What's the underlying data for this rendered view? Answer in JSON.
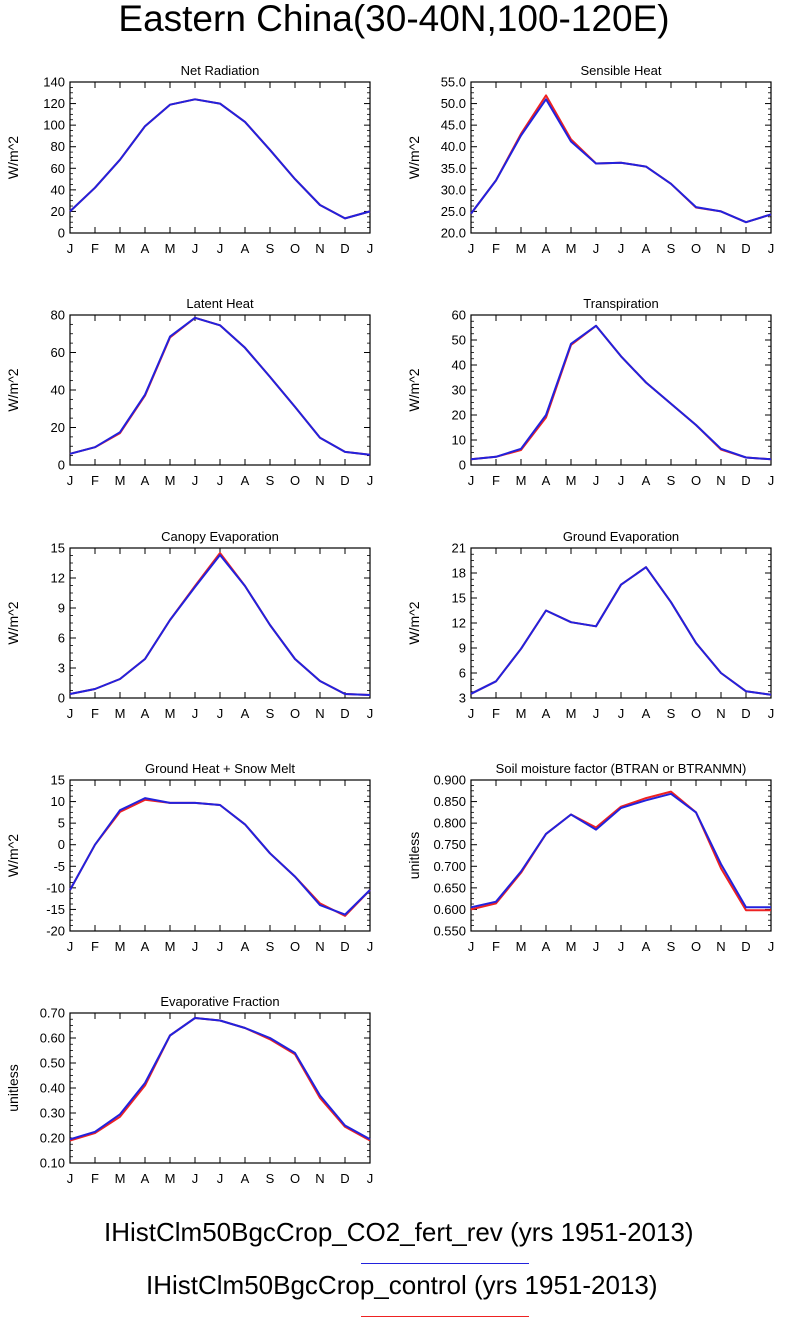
{
  "title": "Eastern China(30-40N,100-120E)",
  "months": [
    "J",
    "F",
    "M",
    "A",
    "M",
    "J",
    "J",
    "A",
    "S",
    "O",
    "N",
    "D",
    "J"
  ],
  "colors": {
    "fert_rev": "#2222dd",
    "control": "#ee2222"
  },
  "legend": [
    {
      "label": "IHistClm50BgcCrop_CO2_fert_rev (yrs 1951-2013)",
      "color": "#2222dd"
    },
    {
      "label": "IHistClm50BgcCrop_control (yrs 1951-2013)",
      "color": "#ee2222"
    }
  ],
  "chart_data": [
    {
      "type": "line",
      "title": "Net Radiation",
      "ylabel": "W/m^2",
      "ylim": [
        0,
        140
      ],
      "yticks": [
        "0",
        "20",
        "40",
        "60",
        "80",
        "100",
        "120",
        "140"
      ],
      "series": [
        {
          "values": [
            20,
            42,
            68,
            99,
            119,
            124,
            120,
            103,
            77,
            50,
            26,
            13.5,
            20
          ]
        },
        {
          "values": [
            20,
            42,
            68,
            99,
            119,
            124,
            120,
            103,
            77,
            50,
            26,
            13.5,
            20
          ]
        }
      ]
    },
    {
      "type": "line",
      "title": "Sensible Heat",
      "ylabel": "W/m^2",
      "ylim": [
        20,
        55
      ],
      "yticks": [
        "20.0",
        "25.0",
        "30.0",
        "35.0",
        "40.0",
        "45.0",
        "50.0",
        "55.0"
      ],
      "series": [
        {
          "values": [
            24.5,
            32.2,
            42.6,
            51.0,
            41.2,
            36.1,
            36.3,
            35.4,
            31.4,
            26.0,
            25.0,
            22.5,
            24.3
          ]
        },
        {
          "values": [
            24.5,
            32.2,
            43.0,
            51.9,
            41.7,
            36.1,
            36.3,
            35.4,
            31.4,
            25.9,
            25.0,
            22.5,
            24.3
          ]
        }
      ]
    },
    {
      "type": "line",
      "title": "Latent Heat",
      "ylabel": "W/m^2",
      "ylim": [
        0,
        80
      ],
      "yticks": [
        "0",
        "20",
        "40",
        "60",
        "80"
      ],
      "series": [
        {
          "values": [
            6,
            9.5,
            17.5,
            37.5,
            68.5,
            78.5,
            74.5,
            62.5,
            47,
            31,
            14.5,
            7,
            5.5
          ]
        },
        {
          "values": [
            6,
            9.5,
            17,
            37,
            68,
            78.5,
            74.5,
            62.5,
            47,
            31,
            14.5,
            7,
            5.5
          ]
        }
      ]
    },
    {
      "type": "line",
      "title": "Transpiration",
      "ylabel": "W/m^2",
      "ylim": [
        0,
        60
      ],
      "yticks": [
        "0",
        "10",
        "20",
        "30",
        "40",
        "50",
        "60"
      ],
      "series": [
        {
          "values": [
            2.3,
            3.3,
            6.5,
            20,
            48.5,
            55.7,
            43.5,
            33,
            24.5,
            16,
            6.5,
            3,
            2.3
          ]
        },
        {
          "values": [
            2.3,
            3.3,
            6,
            19,
            48,
            55.7,
            43.5,
            33,
            24.5,
            16,
            6.2,
            3,
            2.3
          ]
        }
      ]
    },
    {
      "type": "line",
      "title": "Canopy Evaporation",
      "ylabel": "W/m^2",
      "ylim": [
        0,
        15
      ],
      "yticks": [
        "0",
        "3",
        "6",
        "9",
        "12",
        "15"
      ],
      "series": [
        {
          "values": [
            0.4,
            0.9,
            1.9,
            3.9,
            7.8,
            11.1,
            14.3,
            11.2,
            7.3,
            3.9,
            1.7,
            0.4,
            0.3
          ]
        },
        {
          "values": [
            0.4,
            0.9,
            1.9,
            3.9,
            7.8,
            11.2,
            14.5,
            11.2,
            7.3,
            3.9,
            1.7,
            0.4,
            0.3
          ]
        }
      ]
    },
    {
      "type": "line",
      "title": "Ground Evaporation",
      "ylabel": "W/m^2",
      "ylim": [
        3,
        21
      ],
      "yticks": [
        "3",
        "6",
        "9",
        "12",
        "15",
        "18",
        "21"
      ],
      "series": [
        {
          "values": [
            3.5,
            5,
            8.9,
            13.5,
            12.1,
            11.6,
            16.6,
            18.7,
            14.5,
            9.6,
            6,
            3.8,
            3.4
          ]
        },
        {
          "values": [
            3.5,
            5,
            8.9,
            13.5,
            12.1,
            11.6,
            16.6,
            18.7,
            14.5,
            9.6,
            6,
            3.8,
            3.4
          ]
        }
      ]
    },
    {
      "type": "line",
      "title": "Ground Heat + Snow Melt",
      "ylabel": "W/m^2",
      "ylim": [
        -20,
        15
      ],
      "yticks": [
        "-20",
        "-15",
        "-10",
        "-5",
        "0",
        "5",
        "10",
        "15"
      ],
      "series": [
        {
          "values": [
            -10.5,
            0,
            8,
            10.8,
            9.7,
            9.7,
            9.2,
            4.7,
            -2,
            -7.4,
            -14,
            -16.2,
            -10.5
          ]
        },
        {
          "values": [
            -10.5,
            0,
            7.6,
            10.4,
            9.7,
            9.7,
            9.2,
            4.7,
            -2,
            -7.4,
            -13.6,
            -16.5,
            -10.5
          ]
        }
      ]
    },
    {
      "type": "line",
      "title": "Soil moisture factor (BTRAN or BTRANMN)",
      "ylabel": "unitless",
      "ylim": [
        0.55,
        0.9
      ],
      "yticks": [
        "0.550",
        "0.600",
        "0.650",
        "0.700",
        "0.750",
        "0.800",
        "0.850",
        "0.900"
      ],
      "series": [
        {
          "values": [
            0.605,
            0.618,
            0.688,
            0.775,
            0.82,
            0.785,
            0.835,
            0.853,
            0.868,
            0.825,
            0.705,
            0.605,
            0.605
          ]
        },
        {
          "values": [
            0.6,
            0.614,
            0.685,
            0.775,
            0.82,
            0.79,
            0.838,
            0.858,
            0.873,
            0.825,
            0.695,
            0.598,
            0.598
          ]
        }
      ]
    },
    {
      "type": "line",
      "title": "Evaporative Fraction",
      "ylabel": "unitless",
      "ylim": [
        0.1,
        0.7
      ],
      "yticks": [
        "0.10",
        "0.20",
        "0.30",
        "0.40",
        "0.50",
        "0.60",
        "0.70"
      ],
      "series": [
        {
          "values": [
            0.195,
            0.225,
            0.295,
            0.42,
            0.61,
            0.68,
            0.67,
            0.64,
            0.6,
            0.54,
            0.37,
            0.25,
            0.195
          ]
        },
        {
          "values": [
            0.19,
            0.22,
            0.285,
            0.41,
            0.61,
            0.68,
            0.67,
            0.64,
            0.595,
            0.535,
            0.36,
            0.245,
            0.19
          ]
        }
      ]
    }
  ]
}
